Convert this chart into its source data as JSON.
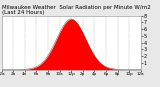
{
  "title": "Milwaukee Weather  Solar Radiation per Minute W/m2  (Last 24 Hours)",
  "title_fontsize": 4.0,
  "background_color": "#e8e8e8",
  "plot_bg_color": "#ffffff",
  "grid_color": "#aaaaaa",
  "fill_color": "#ff0000",
  "line_color": "#cc0000",
  "ylim": [
    0,
    800
  ],
  "xlim": [
    0,
    1440
  ],
  "yticks": [
    100,
    200,
    300,
    400,
    500,
    600,
    700,
    800
  ],
  "ytick_labels": [
    "1",
    "2",
    "3",
    "4",
    "5",
    "6",
    "7",
    "8"
  ],
  "ylabel_fontsize": 3.5,
  "xlabel_fontsize": 3.0,
  "peak_minute": 720,
  "peak_value": 750,
  "sigma": 150,
  "hour_ticks": [
    0,
    120,
    240,
    360,
    480,
    600,
    720,
    840,
    960,
    1080,
    1200,
    1320,
    1440
  ],
  "hour_labels": [
    "12a",
    "2a",
    "4a",
    "6a",
    "8a",
    "10a",
    "12p",
    "2p",
    "4p",
    "6p",
    "8p",
    "10p",
    "12a"
  ],
  "grid_hours": [
    120,
    240,
    360,
    480,
    600,
    720,
    840,
    960,
    1080,
    1200,
    1320
  ]
}
